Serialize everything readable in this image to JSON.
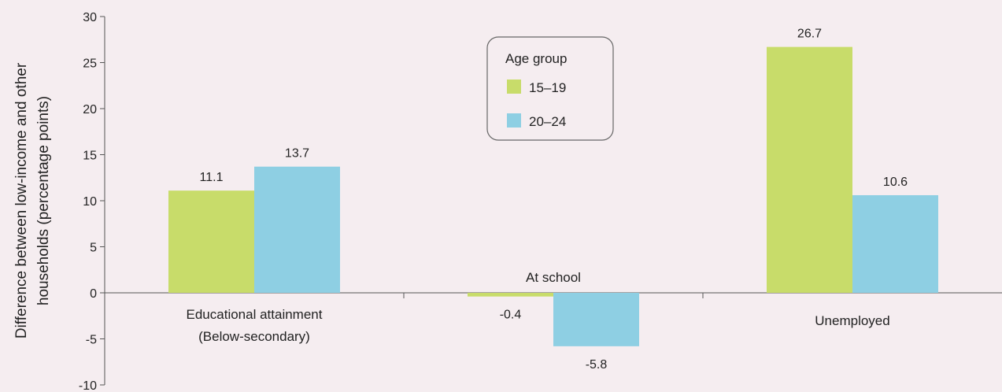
{
  "chart_data": {
    "type": "bar",
    "ylabel_lines": [
      "Difference between low-income and other",
      "households (percentage points)"
    ],
    "xlabel": "",
    "ylim": [
      -10,
      30
    ],
    "yticks": [
      30,
      25,
      20,
      15,
      10,
      5,
      0,
      -5,
      -10
    ],
    "categories": [
      {
        "lines": [
          "Educational attainment",
          "(Below-secondary)"
        ]
      },
      {
        "lines": [
          "At school"
        ]
      },
      {
        "lines": [
          "Unemployed"
        ]
      }
    ],
    "series": [
      {
        "name": "15–19",
        "color": "#c8dc6a",
        "values": [
          11.1,
          -0.4,
          26.7
        ],
        "labels": [
          "11.1",
          "-0.4",
          "26.7"
        ]
      },
      {
        "name": "20–24",
        "color": "#8ecfe3",
        "values": [
          13.7,
          -5.8,
          10.6
        ],
        "labels": [
          "13.7",
          "-5.8",
          "10.6"
        ]
      }
    ],
    "legend": {
      "title": "Age group",
      "placement": "top-center"
    },
    "grid": false
  }
}
